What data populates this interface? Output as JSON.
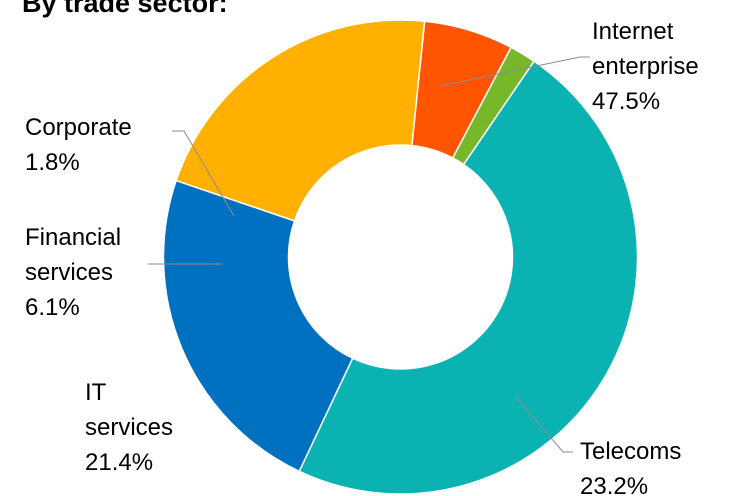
{
  "chart_data": {
    "type": "pie",
    "variant": "donut",
    "title": "By trade sector:",
    "legend": "none",
    "start_slice": "Internet enterprise",
    "direction": "clockwise",
    "slices": [
      {
        "label_lines": [
          "Internet",
          "enterprise"
        ],
        "value": 47.5,
        "value_text": "47.5%",
        "color": "#0AB3B2"
      },
      {
        "label_lines": [
          "Telecoms"
        ],
        "value": 23.2,
        "value_text": "23.2%",
        "color": "#0070C0"
      },
      {
        "label_lines": [
          "IT",
          "services"
        ],
        "value": 21.4,
        "value_text": "21.4%",
        "color": "#FFB000"
      },
      {
        "label_lines": [
          "Financial",
          "services"
        ],
        "value": 6.1,
        "value_text": "6.1%",
        "color": "#FF5500"
      },
      {
        "label_lines": [
          "Corporate"
        ],
        "value": 1.8,
        "value_text": "1.8%",
        "color": "#77B82A"
      }
    ]
  }
}
